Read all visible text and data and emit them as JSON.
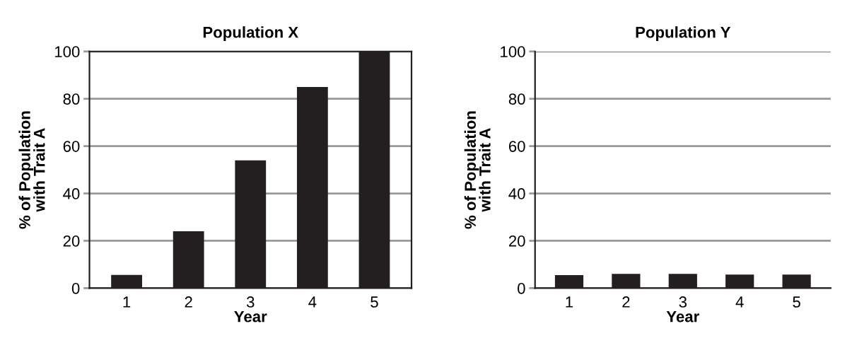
{
  "chart_data": [
    {
      "type": "bar",
      "title": "Population X",
      "xlabel": "Year",
      "ylabel": "% of Population\nwith Trait A",
      "categories": [
        "1",
        "2",
        "3",
        "4",
        "5"
      ],
      "values": [
        5.6,
        24,
        54,
        85,
        100
      ],
      "color": "#231f20",
      "ylim": [
        0,
        100
      ],
      "yticks": [
        0,
        20,
        40,
        60,
        80,
        100
      ],
      "grid": "y"
    },
    {
      "type": "bar",
      "title": "Population Y",
      "xlabel": "Year",
      "ylabel": "% of Population\nwith Trait A",
      "categories": [
        "1",
        "2",
        "3",
        "4",
        "5"
      ],
      "values": [
        5.5,
        6,
        6,
        5.7,
        5.7
      ],
      "color": "#231f20",
      "ylim": [
        0,
        100
      ],
      "yticks": [
        0,
        20,
        40,
        60,
        80,
        100
      ],
      "grid": "y"
    }
  ]
}
